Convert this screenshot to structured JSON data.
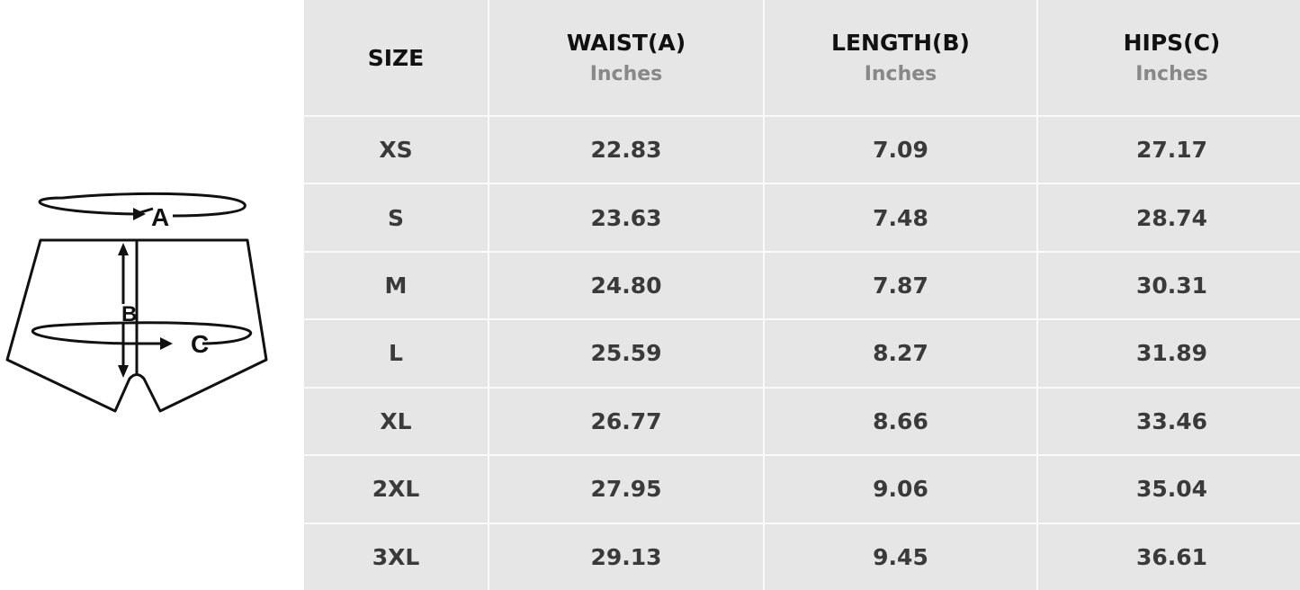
{
  "diagram": {
    "labels": {
      "a": "A",
      "b": "B",
      "c": "C"
    }
  },
  "table": {
    "headers": [
      {
        "title": "SIZE",
        "unit": ""
      },
      {
        "title": "WAIST(A)",
        "unit": "Inches"
      },
      {
        "title": "LENGTH(B)",
        "unit": "Inches"
      },
      {
        "title": "HIPS(C)",
        "unit": "Inches"
      }
    ],
    "rows": [
      [
        "XS",
        "22.83",
        "7.09",
        "27.17"
      ],
      [
        "S",
        "23.63",
        "7.48",
        "28.74"
      ],
      [
        "M",
        "24.80",
        "7.87",
        "30.31"
      ],
      [
        "L",
        "25.59",
        "8.27",
        "31.89"
      ],
      [
        "XL",
        "26.77",
        "8.66",
        "33.46"
      ],
      [
        "2XL",
        "27.95",
        "9.06",
        "35.04"
      ],
      [
        "3XL",
        "29.13",
        "9.45",
        "36.61"
      ]
    ]
  }
}
